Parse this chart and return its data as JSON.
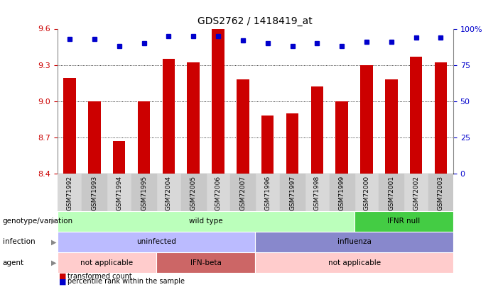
{
  "title": "GDS2762 / 1418419_at",
  "samples": [
    "GSM71992",
    "GSM71993",
    "GSM71994",
    "GSM71995",
    "GSM72004",
    "GSM72005",
    "GSM72006",
    "GSM72007",
    "GSM71996",
    "GSM71997",
    "GSM71998",
    "GSM71999",
    "GSM72000",
    "GSM72001",
    "GSM72002",
    "GSM72003"
  ],
  "red_values": [
    9.19,
    9.0,
    8.67,
    9.0,
    9.35,
    9.32,
    9.6,
    9.18,
    8.88,
    8.9,
    9.12,
    9.0,
    9.3,
    9.18,
    9.37,
    9.32
  ],
  "blue_pct": [
    93,
    93,
    88,
    90,
    95,
    95,
    95,
    92,
    90,
    88,
    90,
    88,
    91,
    91,
    94,
    94
  ],
  "ymin": 8.4,
  "ymax": 9.6,
  "yticks": [
    8.4,
    8.7,
    9.0,
    9.3,
    9.6
  ],
  "right_yticks": [
    0,
    25,
    50,
    75,
    100
  ],
  "bar_color": "#cc0000",
  "dot_color": "#0000cc",
  "bg_color": "#ffffff",
  "row_labels": [
    "genotype/variation",
    "infection",
    "agent"
  ],
  "row1_spans": [
    {
      "label": "wild type",
      "start": 0,
      "end": 12,
      "color": "#bbffbb"
    },
    {
      "label": "IFNR null",
      "start": 12,
      "end": 16,
      "color": "#44cc44"
    }
  ],
  "row2_spans": [
    {
      "label": "uninfected",
      "start": 0,
      "end": 8,
      "color": "#bbbbff"
    },
    {
      "label": "influenza",
      "start": 8,
      "end": 16,
      "color": "#8888cc"
    }
  ],
  "row3_spans": [
    {
      "label": "not applicable",
      "start": 0,
      "end": 4,
      "color": "#ffcccc"
    },
    {
      "label": "IFN-beta",
      "start": 4,
      "end": 8,
      "color": "#cc6666"
    },
    {
      "label": "not applicable",
      "start": 8,
      "end": 16,
      "color": "#ffcccc"
    }
  ],
  "legend_items": [
    {
      "label": "transformed count",
      "color": "#cc0000"
    },
    {
      "label": "percentile rank within the sample",
      "color": "#0000cc"
    }
  ]
}
